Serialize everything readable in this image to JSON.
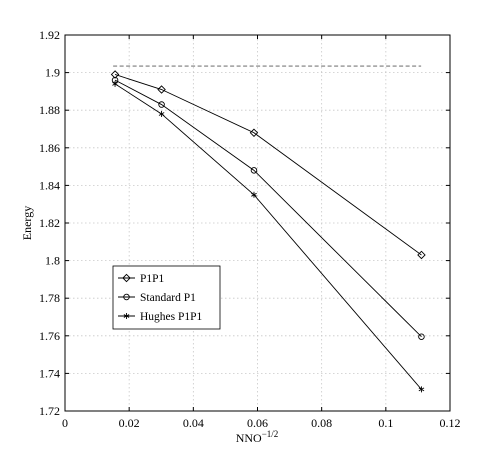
{
  "chart_data": {
    "type": "line",
    "xlabel": "NNO",
    "xlabel_sup": "−1/2",
    "ylabel": "Energy",
    "xlim": [
      0,
      0.12
    ],
    "ylim": [
      1.72,
      1.92
    ],
    "xticks": [
      0,
      0.02,
      0.04,
      0.06,
      0.08,
      0.1,
      0.12
    ],
    "xtick_labels": [
      "0",
      "0.02",
      "0.04",
      "0.06",
      "0.08",
      "0.1",
      "0.12"
    ],
    "yticks": [
      1.72,
      1.74,
      1.76,
      1.78,
      1.8,
      1.82,
      1.84,
      1.86,
      1.88,
      1.9,
      1.92
    ],
    "ytick_labels": [
      "1.72",
      "1.74",
      "1.76",
      "1.78",
      "1.8",
      "1.82",
      "1.84",
      "1.86",
      "1.88",
      "1.9",
      "1.92"
    ],
    "grid": true,
    "legend_position": "lower-left",
    "reference_line": {
      "y": 1.9035,
      "x_range": [
        0.015,
        0.111
      ],
      "style": "dashed"
    },
    "series": [
      {
        "name": "P1P1",
        "marker": "diamond",
        "x": [
          0.0156,
          0.0301,
          0.0589,
          0.1111
        ],
        "y": [
          1.899,
          1.891,
          1.868,
          1.803
        ]
      },
      {
        "name": "Standard P1",
        "marker": "circle",
        "x": [
          0.0156,
          0.0301,
          0.0589,
          0.1111
        ],
        "y": [
          1.896,
          1.883,
          1.848,
          1.7595
        ]
      },
      {
        "name": "Hughes P1P1",
        "marker": "star",
        "x": [
          0.0156,
          0.0301,
          0.0589,
          0.1111
        ],
        "y": [
          1.894,
          1.878,
          1.835,
          1.7315
        ]
      }
    ]
  }
}
